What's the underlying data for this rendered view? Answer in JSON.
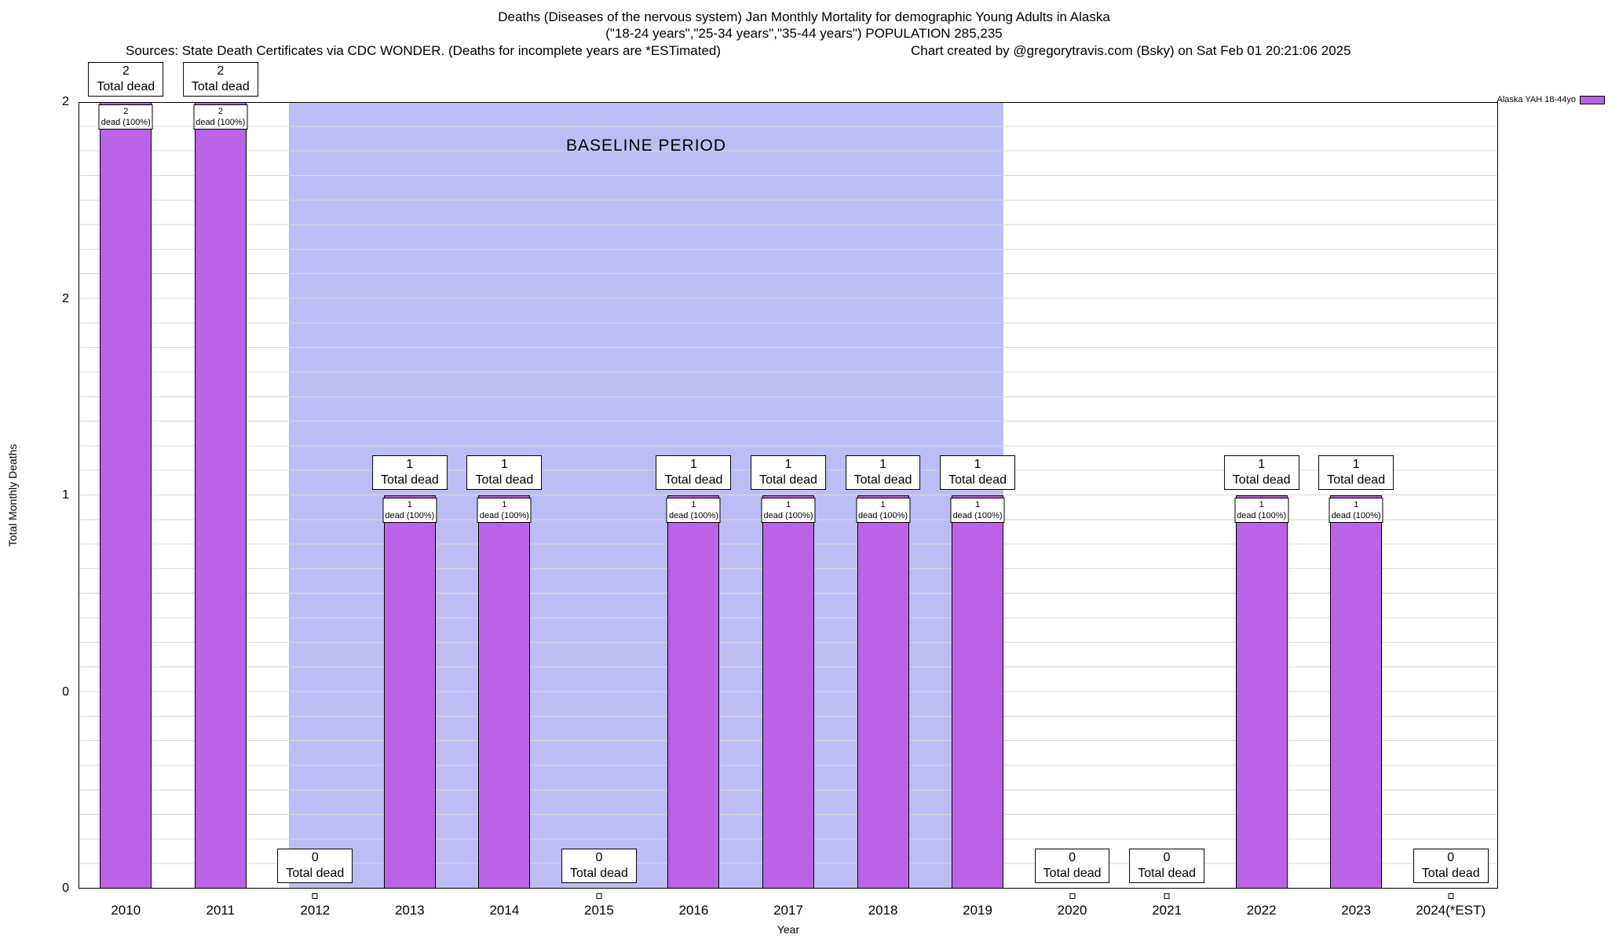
{
  "header": {
    "title_line1": "Deaths (Diseases of the nervous system) Jan Monthly Mortality for demographic Young Adults in Alaska",
    "title_line2": "(\"18-24 years\",\"25-34 years\",\"35-44 years\") POPULATION 285,235",
    "sources": "Sources: State Death Certificates via CDC WONDER. (Deaths for incomplete years are *ESTimated)",
    "credit": "Chart created by @gregorytravis.com (Bsky) on Sat Feb 01 20:21:06 2025"
  },
  "legend": {
    "label": "Alaska YAH 18-44yo"
  },
  "chart_data": {
    "type": "bar",
    "title": "Deaths (Diseases of the nervous system) Jan Monthly Mortality for demographic Young Adults in Alaska",
    "subtitle": "(\"18-24 years\",\"25-34 years\",\"35-44 years\") POPULATION 285,235",
    "xlabel": "Year",
    "ylabel": "Total Monthly Deaths",
    "ylim": [
      0,
      2
    ],
    "ytick_values": [
      0,
      0.5,
      1,
      1.5,
      2
    ],
    "ytick_labels": [
      "0",
      "0",
      "1",
      "2",
      "2"
    ],
    "grid": true,
    "legend_position": "outside-top-right",
    "series_name": "Alaska YAH 18-44yo",
    "categories": [
      "2010",
      "2011",
      "2012",
      "2013",
      "2014",
      "2015",
      "2016",
      "2017",
      "2018",
      "2019",
      "2020",
      "2021",
      "2022",
      "2023",
      "2024(*EST)"
    ],
    "values": [
      2,
      2,
      0,
      1,
      1,
      0,
      1,
      1,
      1,
      1,
      0,
      0,
      1,
      1,
      0
    ],
    "bar_annotation_label": "Total dead",
    "bar_inner_label": "dead (100%)",
    "baseline": {
      "label": "BASELINE PERIOD",
      "from_category": "2012",
      "to_category": "2019",
      "from_index": 2,
      "to_index": 9,
      "color": "#bdbdf6"
    },
    "colors": {
      "bar_fill": "#ba63e6",
      "baseline_region": "#bdbdf6",
      "gridline": "#d9d9d9",
      "plot_border": "#000000"
    }
  }
}
